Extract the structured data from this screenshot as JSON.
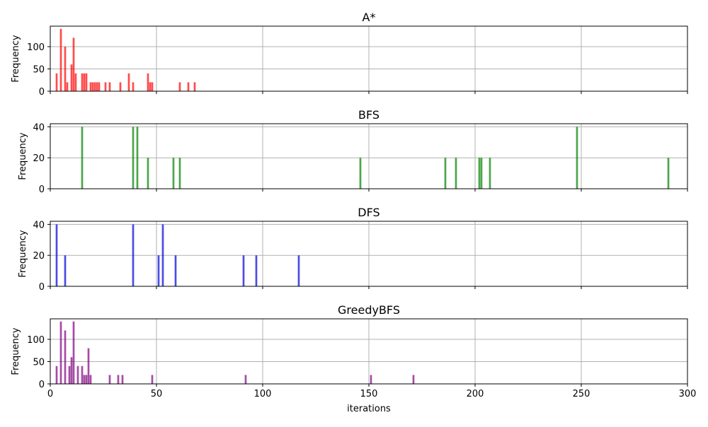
{
  "chart_data": {
    "type": "bar",
    "xlabel": "iterations",
    "xlim": [
      0,
      300
    ],
    "xticks": [
      "0",
      "50",
      "100",
      "150",
      "200",
      "250",
      "300"
    ],
    "grid": true,
    "shared_x": true,
    "panels": [
      {
        "title": "A*",
        "ylabel": "Frequency",
        "color": "#ff0000",
        "ylim": [
          0,
          146
        ],
        "yticks": [
          "0",
          "50",
          "100"
        ],
        "x": [
          3,
          5,
          7,
          8,
          10,
          11,
          12,
          15,
          16,
          17,
          19,
          20,
          21,
          22,
          23,
          26,
          28,
          33,
          37,
          39,
          46,
          47,
          48,
          61,
          65,
          68
        ],
        "values": [
          40,
          140,
          100,
          20,
          60,
          120,
          40,
          40,
          40,
          40,
          20,
          20,
          20,
          20,
          20,
          20,
          20,
          20,
          40,
          20,
          40,
          20,
          20,
          20,
          20,
          20
        ]
      },
      {
        "title": "BFS",
        "ylabel": "Frequency",
        "color": "#008000",
        "ylim": [
          0,
          42
        ],
        "yticks": [
          "0",
          "20",
          "40"
        ],
        "x": [
          15,
          39,
          41,
          46,
          58,
          61,
          146,
          186,
          191,
          202,
          203,
          207,
          248,
          291
        ],
        "values": [
          40,
          40,
          40,
          20,
          20,
          20,
          20,
          20,
          20,
          20,
          20,
          20,
          40,
          20
        ]
      },
      {
        "title": "DFS",
        "ylabel": "Frequency",
        "color": "#0000dd",
        "ylim": [
          0,
          42
        ],
        "yticks": [
          "0",
          "20",
          "40"
        ],
        "x": [
          3,
          7,
          39,
          51,
          53,
          59,
          91,
          97,
          117
        ],
        "values": [
          40,
          20,
          40,
          20,
          40,
          20,
          20,
          20,
          20
        ]
      },
      {
        "title": "GreedyBFS",
        "ylabel": "Frequency",
        "color": "#800080",
        "ylim": [
          0,
          146
        ],
        "yticks": [
          "0",
          "50",
          "100"
        ],
        "x": [
          3,
          5,
          7,
          9,
          10,
          11,
          13,
          15,
          16,
          17,
          18,
          19,
          28,
          32,
          34,
          48,
          92,
          151,
          171
        ],
        "values": [
          40,
          140,
          120,
          40,
          60,
          140,
          40,
          40,
          20,
          20,
          80,
          20,
          20,
          20,
          20,
          20,
          20,
          20,
          20
        ]
      }
    ]
  }
}
